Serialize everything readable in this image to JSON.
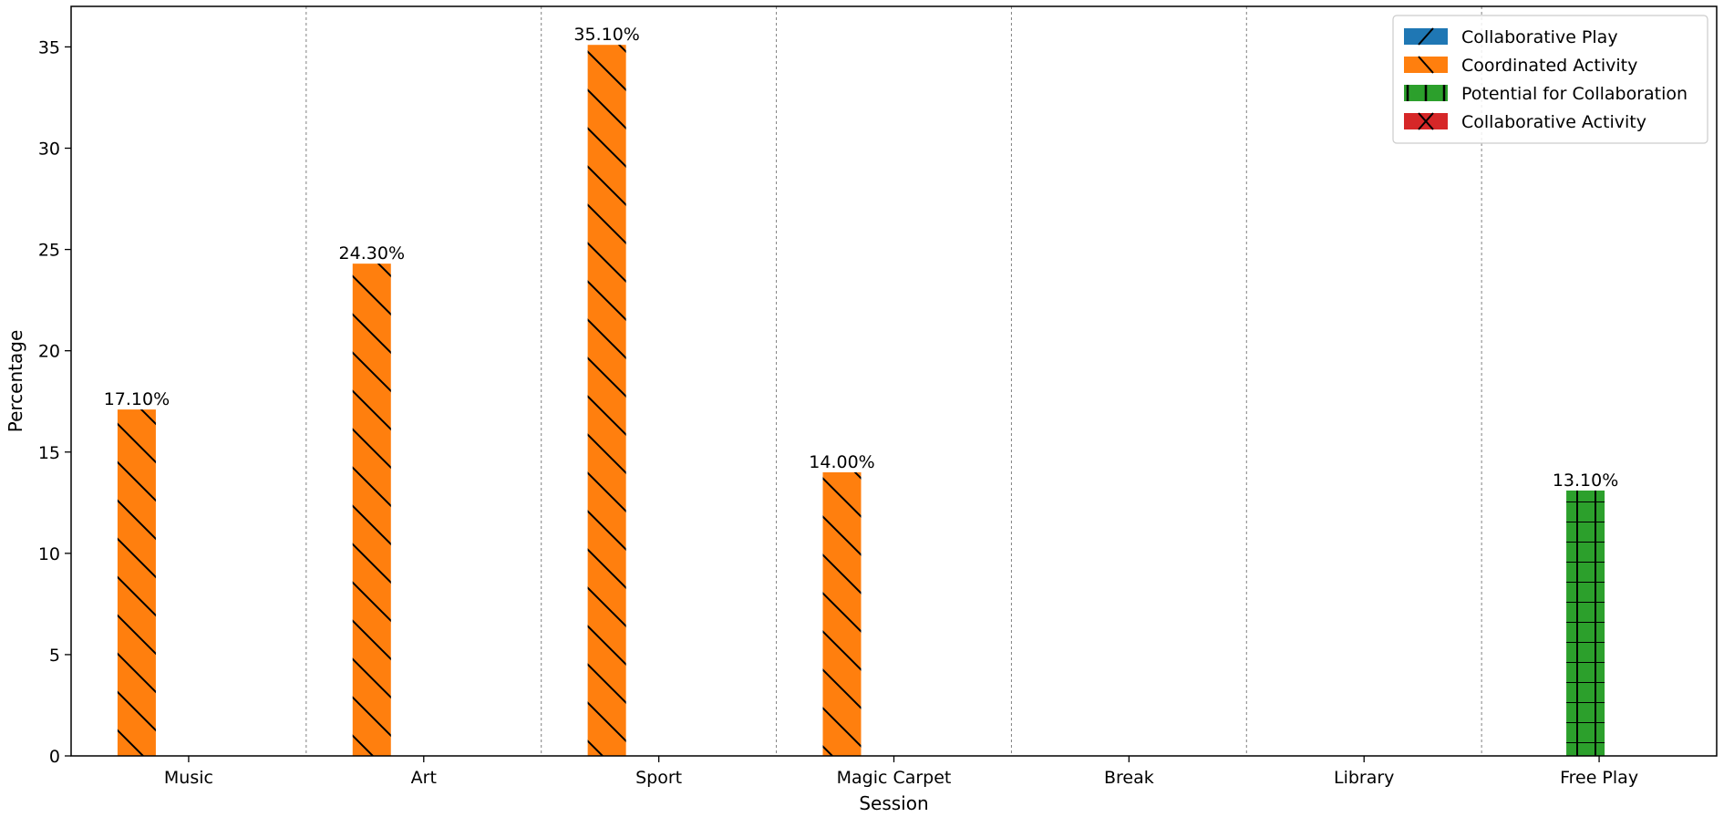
{
  "chart_data": {
    "type": "bar",
    "title": "",
    "xlabel": "Session",
    "ylabel": "Percentage",
    "categories": [
      "Music",
      "Art",
      "Sport",
      "Magic Carpet",
      "Break",
      "Library",
      "Free Play"
    ],
    "ylim": [
      0,
      37
    ],
    "yticks": [
      0,
      5,
      10,
      15,
      20,
      25,
      30,
      35
    ],
    "grid": "vertical dashed lines between categories",
    "legend_position": "top-right",
    "series": [
      {
        "name": "Collaborative Play",
        "color": "#1f77b4",
        "hatch": "forward-slash",
        "values": [
          0,
          0,
          0,
          0,
          0,
          0,
          0
        ]
      },
      {
        "name": "Coordinated Activity",
        "color": "#ff7f0e",
        "hatch": "back-slash",
        "values": [
          17.1,
          24.3,
          35.1,
          14.0,
          0,
          0,
          0
        ]
      },
      {
        "name": "Potential for Collaboration",
        "color": "#2ca02c",
        "hatch": "grid",
        "values": [
          0,
          0,
          0,
          0,
          0,
          0,
          13.1
        ]
      },
      {
        "name": "Collaborative Activity",
        "color": "#d62728",
        "hatch": "cross",
        "values": [
          0,
          0,
          0,
          0,
          0,
          0,
          0
        ]
      }
    ],
    "data_labels": [
      {
        "category": "Music",
        "series": "Coordinated Activity",
        "text": "17.10%"
      },
      {
        "category": "Art",
        "series": "Coordinated Activity",
        "text": "24.30%"
      },
      {
        "category": "Sport",
        "series": "Coordinated Activity",
        "text": "35.10%"
      },
      {
        "category": "Magic Carpet",
        "series": "Coordinated Activity",
        "text": "14.00%"
      },
      {
        "category": "Free Play",
        "series": "Potential for Collaboration",
        "text": "13.10%"
      }
    ]
  }
}
